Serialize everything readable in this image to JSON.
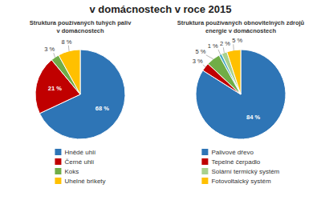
{
  "title": "v domácnostech v roce 2015",
  "chart_data": [
    {
      "type": "pie",
      "title": "Struktura používaných tuhých paliv\nv domácnostech",
      "categories": [
        "Hnědé uhlí",
        "Černé uhlí",
        "Koks",
        "Uhelné brikety"
      ],
      "values": [
        68,
        21,
        3,
        8
      ],
      "value_labels": [
        "68 %",
        "21 %",
        "3 %",
        "8 %"
      ],
      "colors": [
        "#2E75B6",
        "#C00000",
        "#70AD47",
        "#FFC000"
      ],
      "data_labels": true,
      "legend": "bottom"
    },
    {
      "type": "pie",
      "title": "Struktura používaných obnovitelných zdrojů\nenergie v domácnostech",
      "categories": [
        "Palivové dřevo",
        "Tepelné čerpadlo",
        null,
        null,
        "Solární termický systém",
        "Fotovoltaický systém"
      ],
      "values": [
        84,
        3,
        5,
        1,
        2,
        5
      ],
      "value_labels": [
        "84 %",
        "3 %",
        "5 %",
        "1 %",
        "2 %",
        "5 %"
      ],
      "colors": [
        "#2E75B6",
        "#C00000",
        "#70AD47",
        "#4BACC6",
        "#A9D18E",
        "#FFC000"
      ],
      "data_labels": true,
      "legend": "bottom"
    }
  ]
}
